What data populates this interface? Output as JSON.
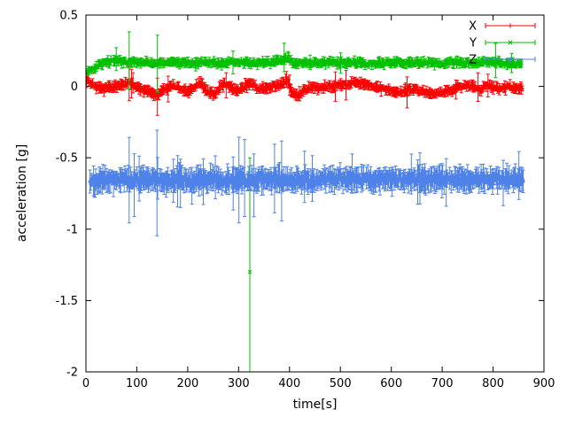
{
  "chart_data": {
    "type": "scatter",
    "style": "points-with-errorbars",
    "title": "",
    "xlabel": "time[s]",
    "ylabel": "acceleration [g]",
    "xlim": [
      0,
      900
    ],
    "ylim": [
      -2,
      0.5
    ],
    "xticks": [
      0,
      100,
      200,
      300,
      400,
      500,
      600,
      700,
      800,
      900
    ],
    "yticks": [
      0.5,
      0,
      -0.5,
      -1,
      -1.5,
      -2
    ],
    "grid": false,
    "background_color": "#ffffff",
    "axis_color": "#000000",
    "legend": {
      "position": "top-right-inside",
      "entries": [
        "X",
        "Y",
        "Z"
      ]
    },
    "series": [
      {
        "name": "X",
        "color": "#ff0000",
        "marker": "plus",
        "seed": 7,
        "noise": 0.012,
        "err_min": 0.01,
        "err_max": 0.04,
        "spike_prob": 0.02,
        "spike_mult": 2.5,
        "t_start": 1,
        "t_end": 858,
        "t_step": 1.5,
        "baseline_t": [
          0,
          15,
          30,
          50,
          70,
          85,
          100,
          120,
          140,
          155,
          170,
          185,
          200,
          215,
          225,
          240,
          255,
          265,
          275,
          290,
          300,
          315,
          325,
          340,
          355,
          370,
          385,
          395,
          405,
          415,
          430,
          445,
          460,
          480,
          500,
          515,
          530,
          545,
          560,
          575,
          590,
          605,
          620,
          640,
          660,
          680,
          700,
          715,
          730,
          745,
          760,
          775,
          790,
          800,
          815,
          830,
          845,
          858
        ],
        "baseline_v": [
          0.05,
          0.01,
          -0.02,
          0,
          0.01,
          0.02,
          0,
          -0.03,
          -0.06,
          -0.02,
          0.01,
          -0.02,
          -0.04,
          0,
          0.03,
          -0.04,
          -0.05,
          0.01,
          0.02,
          -0.02,
          -0.03,
          0.01,
          0.02,
          -0.02,
          -0.01,
          0,
          0.02,
          0.05,
          -0.04,
          -0.07,
          -0.02,
          0,
          -0.01,
          0,
          0.01,
          0.02,
          0.03,
          0.02,
          0,
          -0.01,
          -0.02,
          -0.03,
          -0.04,
          -0.02,
          -0.03,
          -0.05,
          -0.04,
          -0.03,
          -0.01,
          0,
          0,
          -0.02,
          0.01,
          -0.01,
          -0.02,
          0,
          -0.01,
          -0.01
        ],
        "err_spikes": [
          {
            "t": 85,
            "e": 0.12
          },
          {
            "t": 90,
            "e": 0.1
          },
          {
            "t": 140,
            "e": 0.13
          },
          {
            "t": 400,
            "e": 0.07
          },
          {
            "t": 770,
            "e": 0.1
          },
          {
            "t": 790,
            "e": 0.08
          }
        ],
        "outliers": []
      },
      {
        "name": "Y",
        "color": "#00c000",
        "marker": "cross",
        "seed": 13,
        "noise": 0.012,
        "err_min": 0.01,
        "err_max": 0.035,
        "spike_prob": 0.02,
        "spike_mult": 2.2,
        "t_start": 1,
        "t_end": 856,
        "t_step": 1.5,
        "baseline_t": [
          0,
          10,
          25,
          40,
          60,
          85,
          110,
          135,
          160,
          185,
          210,
          235,
          260,
          285,
          310,
          335,
          360,
          380,
          395,
          410,
          430,
          455,
          480,
          505,
          530,
          555,
          580,
          605,
          630,
          655,
          680,
          705,
          730,
          755,
          780,
          805,
          830,
          855
        ],
        "baseline_v": [
          0.1,
          0.12,
          0.15,
          0.17,
          0.18,
          0.17,
          0.17,
          0.16,
          0.17,
          0.17,
          0.16,
          0.17,
          0.16,
          0.17,
          0.17,
          0.16,
          0.17,
          0.18,
          0.2,
          0.16,
          0.17,
          0.165,
          0.17,
          0.165,
          0.17,
          0.16,
          0.165,
          0.17,
          0.165,
          0.17,
          0.16,
          0.165,
          0.17,
          0.16,
          0.17,
          0.17,
          0.16,
          0.16
        ],
        "err_spikes": [
          {
            "t": 60,
            "e": 0.08
          },
          {
            "t": 85,
            "e": 0.2
          },
          {
            "t": 140,
            "e": 0.2
          },
          {
            "t": 390,
            "e": 0.1
          },
          {
            "t": 805,
            "e": 0.12
          }
        ],
        "outliers": [
          {
            "t": 322,
            "v": -1.3,
            "e": 0.8
          }
        ]
      },
      {
        "name": "Z",
        "color": "#4f82e8",
        "marker": "asterisk",
        "seed": 42,
        "noise": 0.025,
        "err_min": 0.025,
        "err_max": 0.09,
        "spike_prob": 0.06,
        "spike_mult": 1.9,
        "t_start": 8,
        "t_end": 860,
        "t_step": 1.4,
        "baseline_t": [
          8,
          30,
          60,
          90,
          120,
          150,
          180,
          210,
          240,
          270,
          300,
          330,
          360,
          390,
          420,
          450,
          480,
          510,
          540,
          570,
          600,
          630,
          660,
          690,
          720,
          750,
          780,
          810,
          840,
          860
        ],
        "baseline_v": [
          -0.67,
          -0.66,
          -0.65,
          -0.66,
          -0.65,
          -0.66,
          -0.65,
          -0.66,
          -0.65,
          -0.66,
          -0.65,
          -0.66,
          -0.65,
          -0.66,
          -0.65,
          -0.66,
          -0.65,
          -0.64,
          -0.65,
          -0.65,
          -0.645,
          -0.65,
          -0.645,
          -0.65,
          -0.65,
          -0.655,
          -0.65,
          -0.65,
          -0.65,
          -0.645
        ],
        "err_spikes": [
          {
            "t": 85,
            "e": 0.3
          },
          {
            "t": 95,
            "e": 0.22
          },
          {
            "t": 140,
            "e": 0.37
          },
          {
            "t": 180,
            "e": 0.18
          },
          {
            "t": 230,
            "e": 0.16
          },
          {
            "t": 255,
            "e": 0.15
          },
          {
            "t": 300,
            "e": 0.3
          },
          {
            "t": 312,
            "e": 0.27
          },
          {
            "t": 330,
            "e": 0.22
          },
          {
            "t": 370,
            "e": 0.24
          },
          {
            "t": 385,
            "e": 0.28
          },
          {
            "t": 430,
            "e": 0.18
          },
          {
            "t": 445,
            "e": 0.16
          },
          {
            "t": 640,
            "e": 0.14
          },
          {
            "t": 700,
            "e": 0.12
          }
        ],
        "outliers": []
      }
    ]
  }
}
